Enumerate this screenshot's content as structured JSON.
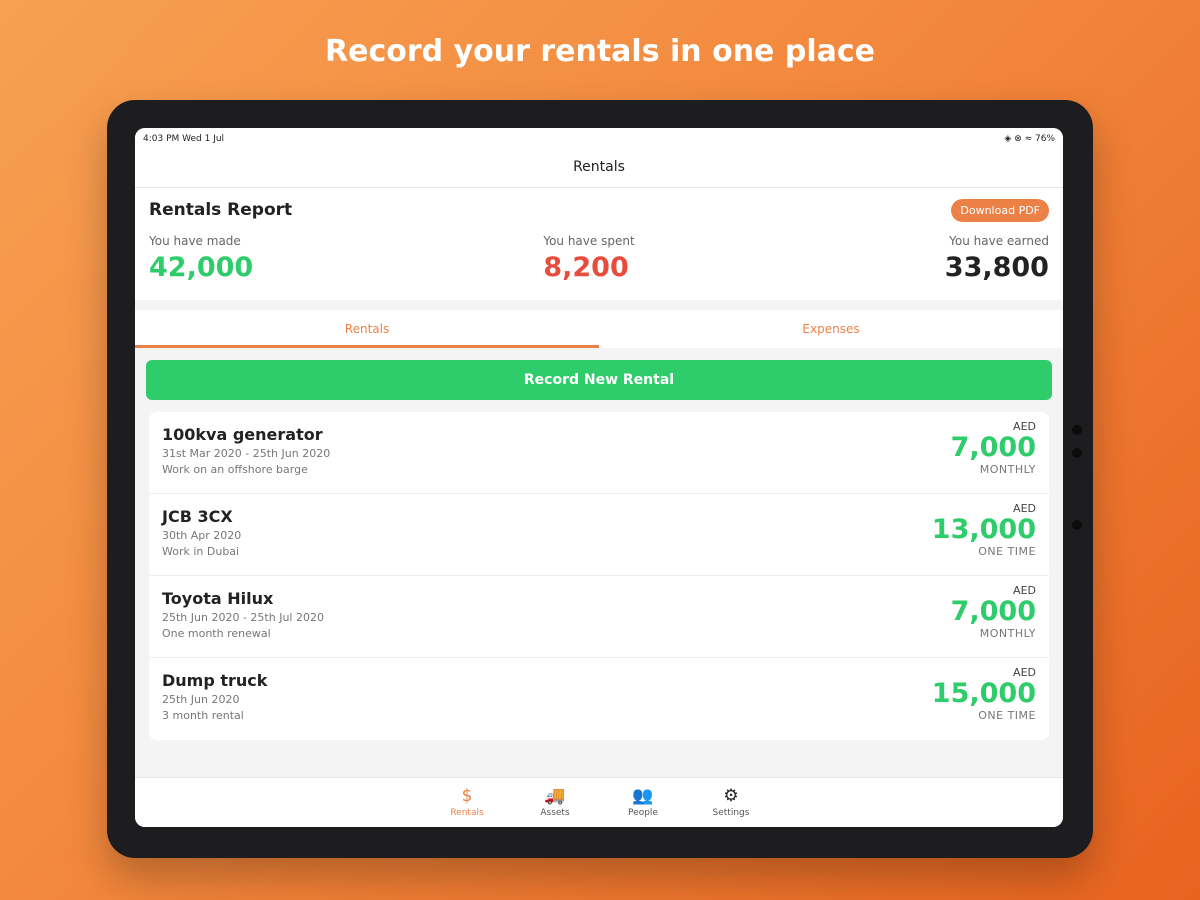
{
  "headline": "Record your rentals in one place",
  "status": {
    "time": "4:03 PM  Wed 1 Jul",
    "right": "◈ ⊗ ≈ 76%"
  },
  "nav_title": "Rentals",
  "report": {
    "title": "Rentals Report",
    "download_label": "Download PDF",
    "stats": [
      {
        "label": "You have made",
        "value": "42,000",
        "color": "#2ecc6b"
      },
      {
        "label": "You have spent",
        "value": "8,200",
        "color": "#e74c3c"
      },
      {
        "label": "You have earned",
        "value": "33,800",
        "color": "#222222"
      }
    ]
  },
  "tabs": [
    {
      "label": "Rentals",
      "active": true
    },
    {
      "label": "Expenses",
      "active": false
    }
  ],
  "record_label": "Record New Rental",
  "rentals": [
    {
      "title": "100kva generator",
      "dates": "31st Mar 2020 - 25th Jun 2020",
      "note": "Work on an offshore barge",
      "currency": "AED",
      "amount": "7,000",
      "period": "MONTHLY"
    },
    {
      "title": "JCB 3CX",
      "dates": "30th Apr 2020",
      "note": "Work in Dubai",
      "currency": "AED",
      "amount": "13,000",
      "period": "ONE TIME"
    },
    {
      "title": "Toyota Hilux",
      "dates": "25th Jun 2020 - 25th Jul 2020",
      "note": "One month renewal",
      "currency": "AED",
      "amount": "7,000",
      "period": "MONTHLY"
    },
    {
      "title": "Dump truck",
      "dates": "25th Jun 2020",
      "note": "3 month rental",
      "currency": "AED",
      "amount": "15,000",
      "period": "ONE TIME"
    }
  ],
  "tabbar": [
    {
      "label": "Rentals",
      "icon": "dollar-icon",
      "glyph": "$",
      "active": true
    },
    {
      "label": "Assets",
      "icon": "truck-icon",
      "glyph": "🚚"
    },
    {
      "label": "People",
      "icon": "people-icon",
      "glyph": "👥"
    },
    {
      "label": "Settings",
      "icon": "gear-icon",
      "glyph": "⚙"
    }
  ],
  "colors": {
    "accent": "#ec8148",
    "green": "#2ecc6b",
    "red": "#e74c3c"
  }
}
